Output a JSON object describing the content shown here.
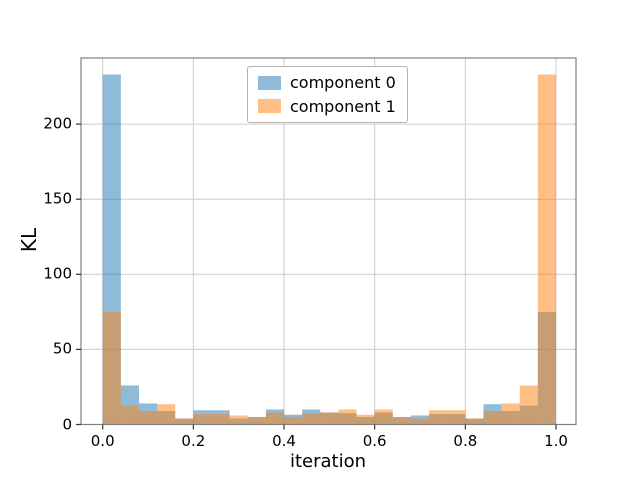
{
  "figure": {
    "background": "#ffffff"
  },
  "chart_data": {
    "type": "bar",
    "subtype": "overlapping_translucent_histogram",
    "title": "",
    "xlabel": "iteration",
    "ylabel": "KL",
    "bins": {
      "start": 0.0,
      "width": 0.04,
      "count": 25
    },
    "series": [
      {
        "name": "component 0",
        "color": "#1f77b4",
        "alpha": 0.5,
        "values": [
          233,
          26,
          14,
          9,
          4,
          9.5,
          9.5,
          4,
          5,
          10,
          6.5,
          10,
          8,
          7.5,
          5,
          8,
          5,
          6,
          7,
          7,
          4,
          13.5,
          9,
          12.5,
          75
        ]
      },
      {
        "name": "component 1",
        "color": "#ff7f0e",
        "alpha": 0.5,
        "values": [
          75,
          12.5,
          9,
          13.5,
          4,
          7,
          7,
          6,
          5,
          8,
          5,
          7.5,
          8,
          10,
          6.5,
          10,
          5,
          4,
          9.5,
          9.5,
          4,
          9,
          14,
          26,
          233
        ]
      }
    ],
    "xlim": [
      -0.048,
      1.044
    ],
    "ylim": [
      0,
      244
    ],
    "xticks": [
      "0.0",
      "0.2",
      "0.4",
      "0.6",
      "0.8",
      "1.0"
    ],
    "yticks": [
      "0",
      "50",
      "100",
      "150",
      "200"
    ],
    "grid": true,
    "grid_color": "#cccccc",
    "spine_color": "#808080",
    "tick_color": "#333333",
    "legend_position": "upper center"
  }
}
